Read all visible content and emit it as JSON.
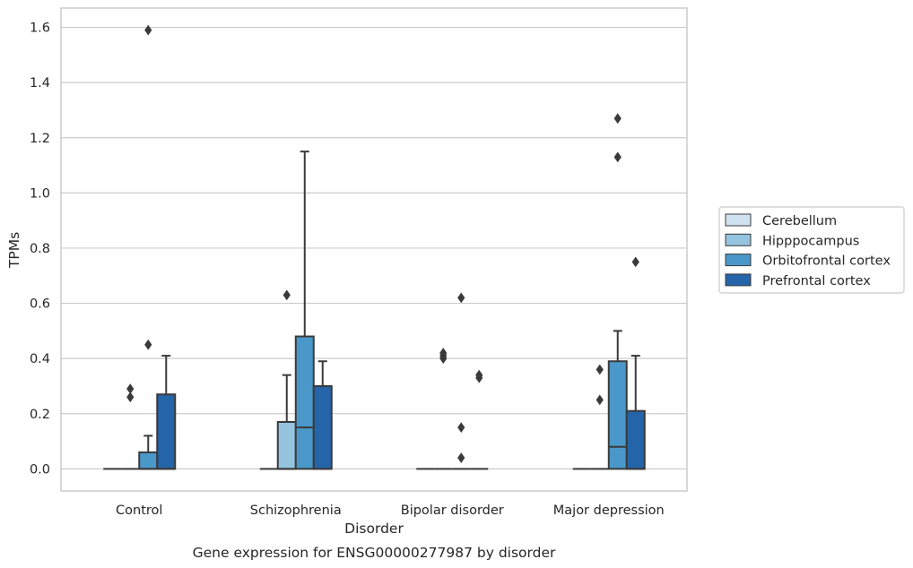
{
  "chart_data": {
    "type": "box",
    "caption": "Gene expression for ENSG00000277987 by disorder",
    "xlabel": "Disorder",
    "ylabel": "TPMs",
    "ylim": [
      -0.08,
      1.67
    ],
    "yticks": [
      "0.0",
      "0.2",
      "0.4",
      "0.6",
      "0.8",
      "1.0",
      "1.2",
      "1.4",
      "1.6"
    ],
    "ytick_values": [
      0.0,
      0.2,
      0.4,
      0.6,
      0.8,
      1.0,
      1.2,
      1.4,
      1.6
    ],
    "categories": [
      "Control",
      "Schizophrenia",
      "Bipolar disorder",
      "Major depression"
    ],
    "grid": "horizontal",
    "legend_position": "right",
    "series": [
      {
        "name": "Cerebellum",
        "color": "#d0e1f2",
        "boxes": [
          {
            "min": 0,
            "q1": 0,
            "median": 0,
            "q3": 0,
            "max": 0,
            "outliers": []
          },
          {
            "min": 0,
            "q1": 0,
            "median": 0,
            "q3": 0,
            "max": 0,
            "outliers": []
          },
          {
            "min": 0,
            "q1": 0,
            "median": 0,
            "q3": 0,
            "max": 0,
            "outliers": []
          },
          {
            "min": 0,
            "q1": 0,
            "median": 0,
            "q3": 0,
            "max": 0,
            "outliers": []
          }
        ]
      },
      {
        "name": "Hipppocampus",
        "color": "#94c4df",
        "boxes": [
          {
            "min": 0,
            "q1": 0,
            "median": 0,
            "q3": 0,
            "max": 0,
            "outliers": [
              0.26,
              0.29
            ]
          },
          {
            "min": 0,
            "q1": 0,
            "median": 0,
            "q3": 0.17,
            "max": 0.34,
            "outliers": [
              0.63
            ]
          },
          {
            "min": 0,
            "q1": 0,
            "median": 0,
            "q3": 0,
            "max": 0,
            "outliers": [
              0.4,
              0.41,
              0.42
            ]
          },
          {
            "min": 0,
            "q1": 0,
            "median": 0,
            "q3": 0,
            "max": 0,
            "outliers": [
              0.25,
              0.36
            ]
          }
        ]
      },
      {
        "name": "Orbitofrontal cortex",
        "color": "#4a98c9",
        "boxes": [
          {
            "min": 0,
            "q1": 0,
            "median": 0,
            "q3": 0.06,
            "max": 0.12,
            "outliers": [
              0.45,
              1.59
            ]
          },
          {
            "min": 0,
            "q1": 0,
            "median": 0.15,
            "q3": 0.48,
            "max": 1.15,
            "outliers": []
          },
          {
            "min": 0,
            "q1": 0,
            "median": 0,
            "q3": 0,
            "max": 0,
            "outliers": [
              0.04,
              0.15,
              0.62
            ]
          },
          {
            "min": 0,
            "q1": 0,
            "median": 0.08,
            "q3": 0.39,
            "max": 0.5,
            "outliers": [
              1.13,
              1.27
            ]
          }
        ]
      },
      {
        "name": "Prefrontal cortex",
        "color": "#2464a8",
        "boxes": [
          {
            "min": 0,
            "q1": 0,
            "median": 0,
            "q3": 0.27,
            "max": 0.41,
            "outliers": []
          },
          {
            "min": 0,
            "q1": 0,
            "median": 0,
            "q3": 0.3,
            "max": 0.39,
            "outliers": []
          },
          {
            "min": 0,
            "q1": 0,
            "median": 0,
            "q3": 0,
            "max": 0,
            "outliers": [
              0.33,
              0.34
            ]
          },
          {
            "min": 0,
            "q1": 0,
            "median": 0,
            "q3": 0.21,
            "max": 0.41,
            "outliers": [
              0.75
            ]
          }
        ]
      }
    ]
  }
}
